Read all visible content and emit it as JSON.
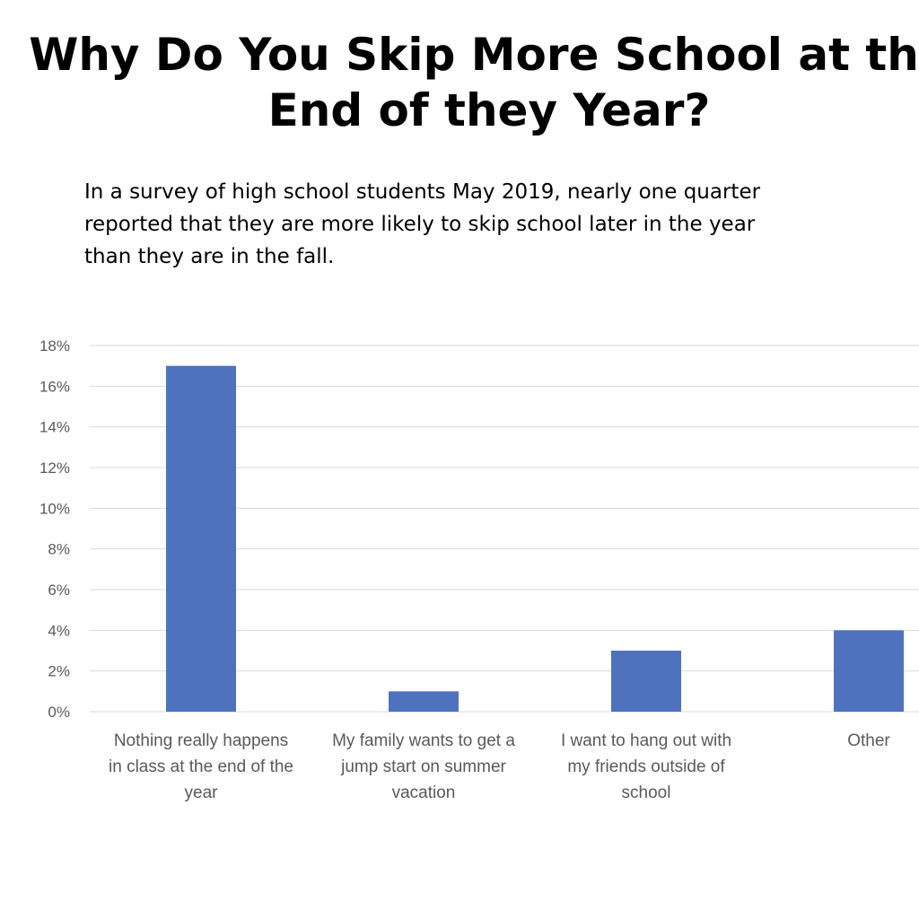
{
  "slide": {
    "title_lines": [
      "Why Do You Skip More School at the",
      "End of they Year?"
    ],
    "subtitle_lines": [
      "In a survey of high school students May 2019, nearly one quarter",
      "reported that they are more likely to skip school later in the year",
      "than they are in the fall."
    ]
  },
  "chart_data": {
    "type": "bar",
    "categories": [
      "Nothing really happens in class at the end of the year",
      "My family wants to get a jump start on summer vacation",
      "I want to hang out with my friends outside of school",
      "Other"
    ],
    "category_label_lines": [
      [
        "Nothing really happens",
        "in class at the end of the",
        "year"
      ],
      [
        "My family wants to get a",
        "jump start on summer",
        "vacation"
      ],
      [
        "I want to hang out with",
        "my friends outside of",
        "school"
      ],
      [
        "Other"
      ]
    ],
    "values": [
      17,
      1,
      3,
      4
    ],
    "ylim": [
      0,
      18
    ],
    "ytick_values": [
      0,
      2,
      4,
      6,
      8,
      10,
      12,
      14,
      16,
      18
    ],
    "ytick_labels": [
      "0%",
      "2%",
      "4%",
      "6%",
      "8%",
      "10%",
      "12%",
      "14%",
      "16%",
      "18%"
    ],
    "xlabel": "",
    "ylabel": "",
    "grid": true,
    "legend": "none",
    "colors": {
      "bar": "#4F72BE",
      "grid": "#D9D9D9",
      "axis_text": "#595959"
    }
  }
}
